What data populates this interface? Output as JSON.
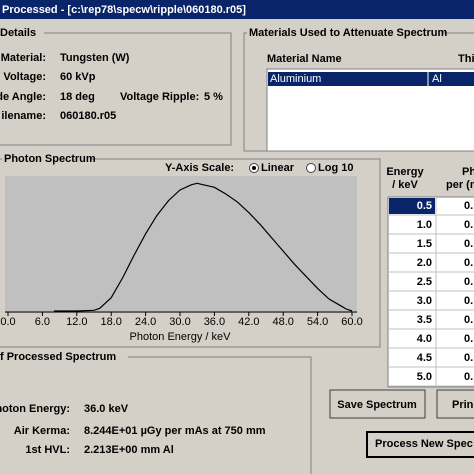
{
  "window": {
    "title": "Processed - [c:\\rep78\\specw\\ripple\\060180.r05]"
  },
  "details": {
    "title": "Details",
    "rows": [
      [
        "Material:",
        "Tungsten (W)"
      ],
      [
        "Voltage:",
        "60 kVp"
      ],
      [
        "de Angle:",
        "18 deg"
      ],
      [
        "ilename:",
        "060180.r05"
      ]
    ],
    "ripple_label": "Voltage Ripple:",
    "ripple_value": "5 %"
  },
  "materials": {
    "title": "Materials Used to Attenuate Spectrum",
    "columns": [
      "Material Name",
      "Thi"
    ],
    "rows": [
      [
        "Aluminium",
        "Al"
      ]
    ]
  },
  "spectrum": {
    "title": "Photon Spectrum",
    "scale_label": "Y-Axis Scale:",
    "scale_options": [
      "Linear",
      "Log 10"
    ],
    "selected_scale": 0,
    "x_label": "Photon Energy / keV",
    "xlim": [
      0,
      60
    ],
    "ylim": [
      0,
      100
    ],
    "xticks": [
      {
        "value": 0,
        "label": "0.0"
      },
      {
        "value": 6,
        "label": "6.0"
      },
      {
        "value": 12,
        "label": "12.0"
      },
      {
        "value": 18,
        "label": "18.0"
      },
      {
        "value": 24,
        "label": "24.0"
      },
      {
        "value": 30,
        "label": "30.0"
      },
      {
        "value": 36,
        "label": "36.0"
      },
      {
        "value": 42,
        "label": "42.0"
      },
      {
        "value": 48,
        "label": "48.0"
      },
      {
        "value": 54,
        "label": "54.0"
      },
      {
        "value": 60,
        "label": "60.0"
      }
    ],
    "x": [
      8,
      12,
      15,
      16,
      18,
      20,
      22,
      24,
      26,
      28,
      30,
      32,
      33,
      34,
      36,
      38,
      40,
      42,
      44,
      46,
      48,
      50,
      52,
      54,
      56,
      58,
      59,
      60
    ],
    "y": [
      0,
      0,
      0.5,
      2,
      10,
      25,
      42,
      58,
      72,
      83,
      91,
      95,
      96,
      95,
      93,
      88,
      82,
      74,
      65,
      55,
      45,
      35,
      26,
      17,
      9,
      4,
      1.5,
      0
    ]
  },
  "table": {
    "columns": [
      "Energy",
      "/ keV",
      "Ph",
      "per (m"
    ],
    "rows": [
      [
        "0.5",
        "0."
      ],
      [
        "1.0",
        "0."
      ],
      [
        "1.5",
        "0."
      ],
      [
        "2.0",
        "0."
      ],
      [
        "2.5",
        "0."
      ],
      [
        "3.0",
        "0."
      ],
      [
        "3.5",
        "0."
      ],
      [
        "4.0",
        "0."
      ],
      [
        "4.5",
        "0."
      ],
      [
        "5.0",
        "0."
      ]
    ]
  },
  "results": {
    "title": "f Processed Spectrum",
    "rows": [
      [
        "hoton Energy:",
        "36.0 keV"
      ],
      [
        "Air Kerma:",
        "8.244E+01 µGy per mAs at 750 mm"
      ],
      [
        "1st HVL:",
        "2.213E+00 mm Al"
      ]
    ]
  },
  "buttons": {
    "save": "Save Spectrum",
    "print": "Prin",
    "process": "Process New Spec"
  }
}
